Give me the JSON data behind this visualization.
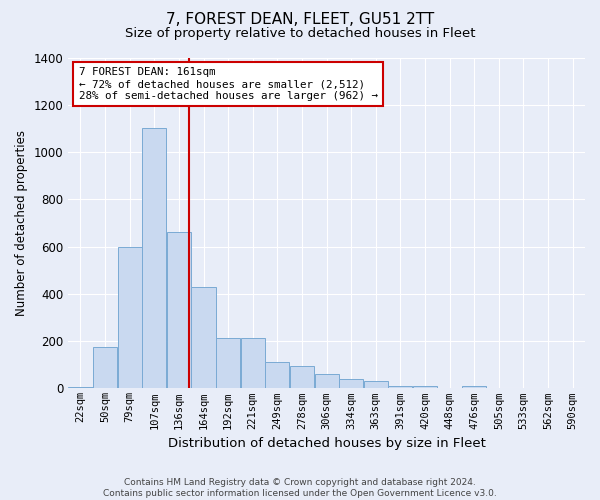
{
  "title": "7, FOREST DEAN, FLEET, GU51 2TT",
  "subtitle": "Size of property relative to detached houses in Fleet",
  "xlabel": "Distribution of detached houses by size in Fleet",
  "ylabel": "Number of detached properties",
  "footer_line1": "Contains HM Land Registry data © Crown copyright and database right 2024.",
  "footer_line2": "Contains public sector information licensed under the Open Government Licence v3.0.",
  "annotation_line1": "7 FOREST DEAN: 161sqm",
  "annotation_line2": "← 72% of detached houses are smaller (2,512)",
  "annotation_line3": "28% of semi-detached houses are larger (962) →",
  "bar_color": "#c9d9f0",
  "bar_edge_color": "#7aaad4",
  "vline_color": "#cc0000",
  "vline_x_index": 4,
  "categories": [
    "22sqm",
    "50sqm",
    "79sqm",
    "107sqm",
    "136sqm",
    "164sqm",
    "192sqm",
    "221sqm",
    "249sqm",
    "278sqm",
    "306sqm",
    "334sqm",
    "363sqm",
    "391sqm",
    "420sqm",
    "448sqm",
    "476sqm",
    "505sqm",
    "533sqm",
    "562sqm",
    "590sqm"
  ],
  "values": [
    5,
    175,
    600,
    1100,
    660,
    430,
    215,
    215,
    110,
    95,
    60,
    40,
    30,
    10,
    10,
    0,
    10,
    0,
    0,
    0,
    0
  ],
  "ylim": [
    0,
    1400
  ],
  "yticks": [
    0,
    200,
    400,
    600,
    800,
    1000,
    1200,
    1400
  ],
  "background_color": "#e8edf8",
  "plot_bg_color": "#e8edf8",
  "title_fontsize": 11,
  "subtitle_fontsize": 9.5,
  "xlabel_fontsize": 9.5,
  "ylabel_fontsize": 8.5,
  "annotation_box_facecolor": "white",
  "annotation_box_edgecolor": "#cc0000",
  "footer_fontsize": 6.5
}
